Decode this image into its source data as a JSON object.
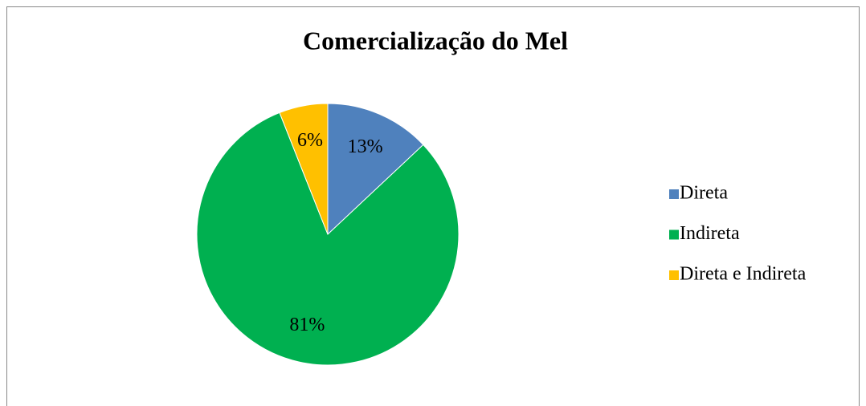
{
  "chart_data": {
    "type": "pie",
    "title": "Comercialização do Mel",
    "categories": [
      "Direta",
      "Indireta",
      "Direta e Indireta"
    ],
    "values": [
      13,
      81,
      6
    ],
    "value_labels": [
      "13%",
      "81%",
      "6%"
    ],
    "colors": [
      "#4f81bd",
      "#00b050",
      "#ffc000"
    ],
    "legend": "right"
  }
}
